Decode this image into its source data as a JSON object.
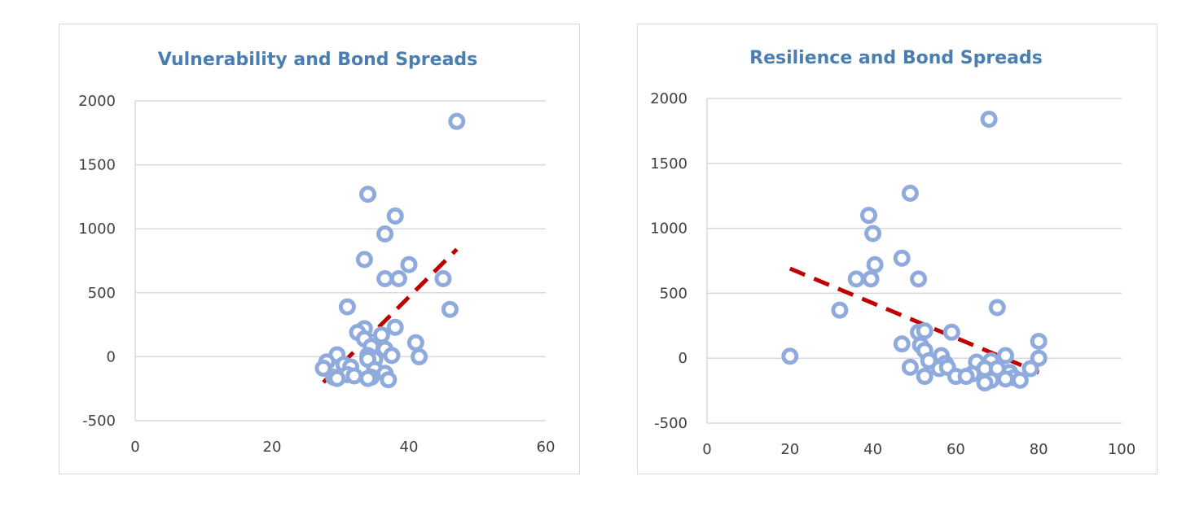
{
  "colors": {
    "title": "#4a7eb0",
    "marker": "#8faadc",
    "trendline": "#c00000",
    "gridline": "#d9d9d9",
    "axis_text": "#404040"
  },
  "chart_data": [
    {
      "type": "scatter",
      "title": "Vulnerability and Bond Spreads",
      "xlabel": "",
      "ylabel": "",
      "xlim": [
        0,
        60
      ],
      "ylim": [
        -500,
        2000
      ],
      "xticks": [
        "0",
        "20",
        "40",
        "60"
      ],
      "yticks": [
        "2000",
        "1500",
        "1000",
        "500",
        "0",
        "-500"
      ],
      "grid": "horizontal",
      "legend": "none",
      "series": [
        {
          "points": [
            [
              47,
              1840
            ],
            [
              34,
              1270
            ],
            [
              38,
              1100
            ],
            [
              36.5,
              960
            ],
            [
              33.5,
              760
            ],
            [
              40,
              720
            ],
            [
              36.5,
              610
            ],
            [
              38.5,
              610
            ],
            [
              45,
              610
            ],
            [
              31,
              390
            ],
            [
              46,
              370
            ],
            [
              38,
              230
            ],
            [
              33.5,
              220
            ],
            [
              32.5,
              190
            ],
            [
              36,
              170
            ],
            [
              33.5,
              140
            ],
            [
              41,
              110
            ],
            [
              34.5,
              80
            ],
            [
              36.5,
              60
            ],
            [
              29.5,
              15
            ],
            [
              34,
              10
            ],
            [
              37.5,
              10
            ],
            [
              41.5,
              0
            ],
            [
              35,
              -20
            ],
            [
              34,
              -20
            ],
            [
              28,
              -40
            ],
            [
              30.5,
              -60
            ],
            [
              31.5,
              -80
            ],
            [
              27.5,
              -90
            ],
            [
              35,
              -100
            ],
            [
              36.5,
              -130
            ],
            [
              31,
              -140
            ],
            [
              32,
              -150
            ],
            [
              29,
              -160
            ],
            [
              34.5,
              -160
            ],
            [
              29.5,
              -170
            ],
            [
              34,
              -170
            ],
            [
              37,
              -180
            ]
          ]
        }
      ],
      "trendline": {
        "x": [
          27.5,
          47
        ],
        "y": [
          -200,
          840
        ]
      }
    },
    {
      "type": "scatter",
      "title": "Resilience and Bond Spreads",
      "xlabel": "",
      "ylabel": "",
      "xlim": [
        0,
        100
      ],
      "ylim": [
        -500,
        2000
      ],
      "xticks": [
        "0",
        "20",
        "40",
        "60",
        "80",
        "100"
      ],
      "yticks": [
        "2000",
        "1500",
        "1000",
        "500",
        "0",
        "-500"
      ],
      "grid": "horizontal",
      "legend": "none",
      "series": [
        {
          "points": [
            [
              68,
              1840
            ],
            [
              49,
              1270
            ],
            [
              39,
              1100
            ],
            [
              40,
              960
            ],
            [
              47,
              770
            ],
            [
              40.5,
              720
            ],
            [
              36,
              610
            ],
            [
              39.5,
              610
            ],
            [
              51,
              610
            ],
            [
              70,
              390
            ],
            [
              32,
              370
            ],
            [
              51,
              200
            ],
            [
              52.5,
              210
            ],
            [
              59,
              200
            ],
            [
              80,
              130
            ],
            [
              47,
              110
            ],
            [
              51.5,
              100
            ],
            [
              52.5,
              60
            ],
            [
              20,
              15
            ],
            [
              56.5,
              20
            ],
            [
              72,
              20
            ],
            [
              80,
              0
            ],
            [
              53.5,
              -20
            ],
            [
              57.5,
              -40
            ],
            [
              65,
              -30
            ],
            [
              68.5,
              -20
            ],
            [
              49,
              -70
            ],
            [
              56,
              -80
            ],
            [
              58,
              -70
            ],
            [
              67,
              -80
            ],
            [
              70,
              -80
            ],
            [
              78,
              -80
            ],
            [
              73,
              -110
            ],
            [
              64,
              -120
            ],
            [
              52.5,
              -140
            ],
            [
              60,
              -140
            ],
            [
              62.5,
              -140
            ],
            [
              74,
              -150
            ],
            [
              72,
              -160
            ],
            [
              75.5,
              -170
            ],
            [
              68.5,
              -170
            ],
            [
              67,
              -190
            ]
          ]
        }
      ],
      "trendline": {
        "x": [
          20,
          80
        ],
        "y": [
          690,
          -110
        ]
      }
    }
  ]
}
